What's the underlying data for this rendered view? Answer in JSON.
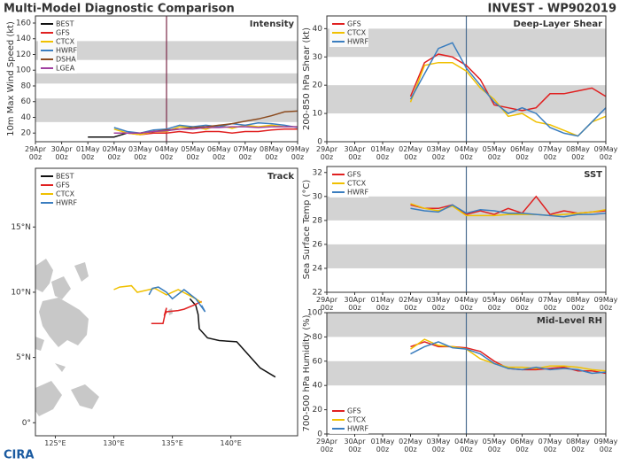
{
  "header": {
    "title_left": "Multi-Model Diagnostic Comparison",
    "title_right": "INVEST - WP902019"
  },
  "logo": "CIRA",
  "chart_data": [
    {
      "type": "line",
      "title": "Intensity",
      "ylabel": "10m Max Wind Speed (kt)",
      "legend": "upper left",
      "xlim": [
        0,
        10
      ],
      "ylim": [
        9,
        169
      ],
      "xticks": [
        {
          "value": 0,
          "label": "29Apr\n00z"
        },
        {
          "value": 1,
          "label": "30Apr\n00z"
        },
        {
          "value": 2,
          "label": "01May\n00z"
        },
        {
          "value": 3,
          "label": "02May\n00z"
        },
        {
          "value": 4,
          "label": "03May\n00z"
        },
        {
          "value": 5,
          "label": "04May\n00z"
        },
        {
          "value": 6,
          "label": "05May\n00z"
        },
        {
          "value": 7,
          "label": "06May\n00z"
        },
        {
          "value": 8,
          "label": "07May\n00z"
        },
        {
          "value": 9,
          "label": "08May\n00z"
        },
        {
          "value": 10,
          "label": "09May\n00z"
        }
      ],
      "yticks": [
        20,
        40,
        60,
        80,
        100,
        120,
        140,
        160
      ],
      "bands": [
        [
          34,
          64
        ],
        [
          83,
          96
        ],
        [
          113,
          137
        ]
      ],
      "band_color": "#d3d3d3",
      "marker": {
        "x": 5,
        "color": "#7a2848"
      },
      "x": [
        2,
        2.5,
        3,
        3.5,
        4,
        4.5,
        5,
        5.5,
        6,
        6.5,
        7,
        7.5,
        8,
        8.5,
        9,
        9.5,
        10
      ],
      "series": [
        {
          "name": "BEST",
          "color": "#111111",
          "values": [
            15,
            15,
            15,
            20,
            20,
            20,
            20,
            null,
            null,
            null,
            null,
            null,
            null,
            null,
            null,
            null,
            null
          ]
        },
        {
          "name": "GFS",
          "color": "#e02020",
          "values": [
            null,
            null,
            20,
            20,
            18,
            20,
            20,
            22,
            20,
            22,
            22,
            20,
            22,
            22,
            24,
            25,
            25
          ]
        },
        {
          "name": "CTCX",
          "color": "#f0c000",
          "values": [
            null,
            null,
            25,
            20,
            18,
            22,
            22,
            28,
            28,
            25,
            30,
            26,
            30,
            28,
            30,
            28,
            28
          ]
        },
        {
          "name": "HWRF",
          "color": "#3a7dbf",
          "values": [
            null,
            null,
            27,
            22,
            20,
            24,
            25,
            30,
            28,
            30,
            28,
            32,
            30,
            33,
            32,
            30,
            27
          ]
        },
        {
          "name": "DSHA",
          "color": "#8b4a1e",
          "values": [
            null,
            null,
            20,
            20,
            20,
            22,
            24,
            25,
            27,
            28,
            30,
            32,
            35,
            38,
            42,
            47,
            48
          ]
        },
        {
          "name": "LGEA",
          "color": "#a040a0",
          "values": [
            null,
            null,
            20,
            20,
            20,
            22,
            23,
            25,
            25,
            27,
            27,
            28,
            28,
            27,
            28,
            28,
            28
          ]
        }
      ]
    },
    {
      "type": "line",
      "title": "Deep-Layer Shear",
      "ylabel": "200-850 hPa Shear (kt)",
      "legend": "upper left",
      "xlim": [
        0,
        10
      ],
      "ylim": [
        0,
        44.5
      ],
      "xticks": [
        {
          "value": 0,
          "label": "29Apr\n00z"
        },
        {
          "value": 1,
          "label": "30Apr\n00z"
        },
        {
          "value": 2,
          "label": "01May\n00z"
        },
        {
          "value": 3,
          "label": "02May\n00z"
        },
        {
          "value": 4,
          "label": "03May\n00z"
        },
        {
          "value": 5,
          "label": "04May\n00z"
        },
        {
          "value": 6,
          "label": "05May\n00z"
        },
        {
          "value": 7,
          "label": "06May\n00z"
        },
        {
          "value": 8,
          "label": "07May\n00z"
        },
        {
          "value": 9,
          "label": "08May\n00z"
        },
        {
          "value": 10,
          "label": "09May\n00z"
        }
      ],
      "yticks": [
        0,
        10,
        20,
        30,
        40
      ],
      "bands": [
        [
          10,
          20
        ],
        [
          30,
          40
        ]
      ],
      "band_color": "#d3d3d3",
      "marker": {
        "x": 5,
        "color": "#4a6d90"
      },
      "x": [
        3,
        3.5,
        4,
        4.5,
        5,
        5.5,
        6,
        6.5,
        7,
        7.5,
        8,
        8.5,
        9,
        9.5,
        10
      ],
      "series": [
        {
          "name": "GFS",
          "color": "#e02020",
          "values": [
            16,
            28,
            31,
            30,
            27,
            22,
            13,
            12,
            11,
            12,
            17,
            17,
            18,
            19,
            16
          ]
        },
        {
          "name": "CTCX",
          "color": "#f0c000",
          "values": [
            14,
            27,
            28,
            28,
            25,
            19,
            15,
            9,
            10,
            7,
            6,
            4,
            2,
            7,
            9
          ]
        },
        {
          "name": "HWRF",
          "color": "#3a7dbf",
          "values": [
            15,
            24,
            33,
            35,
            26,
            20,
            14,
            10,
            12,
            10,
            5,
            3,
            2,
            7,
            12
          ]
        }
      ]
    },
    {
      "type": "track",
      "title": "Track",
      "legend": "upper left",
      "xlim": [
        123.3,
        145.7
      ],
      "ylim": [
        -1,
        19.5
      ],
      "xticks": [
        {
          "value": 125,
          "label": "125°E"
        },
        {
          "value": 130,
          "label": "130°E"
        },
        {
          "value": 135,
          "label": "135°E"
        },
        {
          "value": 140,
          "label": "140°E"
        }
      ],
      "yticks": [
        {
          "value": 0,
          "label": "0°"
        },
        {
          "value": 5,
          "label": "5°N"
        },
        {
          "value": 10,
          "label": "10°N"
        },
        {
          "value": 15,
          "label": "15°N"
        }
      ],
      "series": [
        {
          "name": "BEST",
          "color": "#111111",
          "x": [
            143.8,
            142.5,
            140.5,
            139,
            138,
            137.3,
            137.2,
            137,
            136.5
          ],
          "values": [
            3.5,
            4.2,
            6.2,
            6.3,
            6.5,
            7.2,
            8.3,
            9,
            9.5
          ]
        },
        {
          "name": "GFS",
          "color": "#e02020",
          "x": [
            137.5,
            136.8,
            136,
            135.5,
            134.5,
            134.3,
            134.5,
            134.2,
            133.2
          ],
          "values": [
            9.3,
            9,
            8.7,
            8.6,
            8.5,
            8.2,
            8.8,
            7.6,
            7.6
          ]
        },
        {
          "name": "CTCX",
          "color": "#f0c000",
          "x": [
            137.5,
            137,
            135.5,
            134.5,
            133.5,
            132,
            131.5,
            130.5,
            130
          ],
          "values": [
            9.2,
            9.5,
            10.2,
            9.8,
            10.3,
            10,
            10.5,
            10.4,
            10.2
          ]
        },
        {
          "name": "HWRF",
          "color": "#3a7dbf",
          "x": [
            137.5,
            137.8,
            137,
            136,
            135,
            134.5,
            133.8,
            133.3,
            133
          ],
          "values": [
            9,
            8.5,
            9.5,
            10.2,
            9.5,
            10,
            10.4,
            10.3,
            9.8
          ]
        }
      ]
    },
    {
      "type": "line",
      "title": "SST",
      "ylabel": "Sea Surface Temp (°C)",
      "legend": "upper left",
      "xlim": [
        0,
        10
      ],
      "ylim": [
        22,
        32.5
      ],
      "xticks": [
        {
          "value": 0,
          "label": "29Apr\n00z"
        },
        {
          "value": 1,
          "label": "30Apr\n00z"
        },
        {
          "value": 2,
          "label": "01May\n00z"
        },
        {
          "value": 3,
          "label": "02May\n00z"
        },
        {
          "value": 4,
          "label": "03May\n00z"
        },
        {
          "value": 5,
          "label": "04May\n00z"
        },
        {
          "value": 6,
          "label": "05May\n00z"
        },
        {
          "value": 7,
          "label": "06May\n00z"
        },
        {
          "value": 8,
          "label": "07May\n00z"
        },
        {
          "value": 9,
          "label": "08May\n00z"
        },
        {
          "value": 10,
          "label": "09May\n00z"
        }
      ],
      "yticks": [
        22,
        24,
        26,
        28,
        30,
        32
      ],
      "bands": [
        [
          24,
          26
        ],
        [
          28,
          30
        ]
      ],
      "band_color": "#d3d3d3",
      "marker": {
        "x": 5,
        "color": "#4a6d90"
      },
      "x": [
        3,
        3.5,
        4,
        4.5,
        5,
        5.5,
        6,
        6.5,
        7,
        7.5,
        8,
        8.5,
        9,
        9.5,
        10
      ],
      "series": [
        {
          "name": "GFS",
          "color": "#e02020",
          "values": [
            29.3,
            29,
            29,
            29.3,
            28.5,
            28.8,
            28.5,
            29,
            28.6,
            30,
            28.5,
            28.8,
            28.6,
            28.7,
            28.8
          ]
        },
        {
          "name": "CTCX",
          "color": "#f0c000",
          "values": [
            29.4,
            29,
            28.8,
            29.2,
            28.4,
            28.4,
            28.4,
            28.5,
            28.5,
            28.5,
            28.4,
            28.5,
            28.6,
            28.7,
            28.9
          ]
        },
        {
          "name": "HWRF",
          "color": "#3a7dbf",
          "values": [
            29,
            28.8,
            28.7,
            29.3,
            28.6,
            28.9,
            28.8,
            28.6,
            28.6,
            28.5,
            28.4,
            28.3,
            28.5,
            28.5,
            28.6
          ]
        }
      ]
    },
    {
      "type": "line",
      "title": "Mid-Level RH",
      "ylabel": "700-500 hPa Humidity (%)",
      "legend": "lower left",
      "xlim": [
        0,
        10
      ],
      "ylim": [
        0,
        100
      ],
      "xticks": [
        {
          "value": 0,
          "label": "29Apr\n00z"
        },
        {
          "value": 1,
          "label": "30Apr\n00z"
        },
        {
          "value": 2,
          "label": "01May\n00z"
        },
        {
          "value": 3,
          "label": "02May\n00z"
        },
        {
          "value": 4,
          "label": "03May\n00z"
        },
        {
          "value": 5,
          "label": "04May\n00z"
        },
        {
          "value": 6,
          "label": "05May\n00z"
        },
        {
          "value": 7,
          "label": "06May\n00z"
        },
        {
          "value": 8,
          "label": "07May\n00z"
        },
        {
          "value": 9,
          "label": "08May\n00z"
        },
        {
          "value": 10,
          "label": "09May\n00z"
        }
      ],
      "yticks": [
        0,
        20,
        40,
        60,
        80,
        100
      ],
      "bands": [
        [
          40,
          60
        ],
        [
          80,
          100
        ]
      ],
      "band_color": "#d3d3d3",
      "marker": {
        "x": 5,
        "color": "#4a6d90"
      },
      "x": [
        3,
        3.5,
        4,
        4.5,
        5,
        5.5,
        6,
        6.5,
        7,
        7.5,
        8,
        8.5,
        9,
        9.5,
        10
      ],
      "series": [
        {
          "name": "GFS",
          "color": "#e02020",
          "values": [
            72,
            76,
            72,
            72,
            71,
            68,
            60,
            54,
            53,
            53,
            54,
            55,
            52,
            52,
            50
          ]
        },
        {
          "name": "CTCX",
          "color": "#f0c000",
          "values": [
            70,
            78,
            73,
            72,
            70,
            62,
            58,
            55,
            55,
            54,
            56,
            56,
            55,
            53,
            52
          ]
        },
        {
          "name": "HWRF",
          "color": "#3a7dbf",
          "values": [
            66,
            72,
            76,
            71,
            70,
            66,
            58,
            54,
            53,
            55,
            53,
            54,
            53,
            50,
            51
          ]
        }
      ]
    }
  ]
}
